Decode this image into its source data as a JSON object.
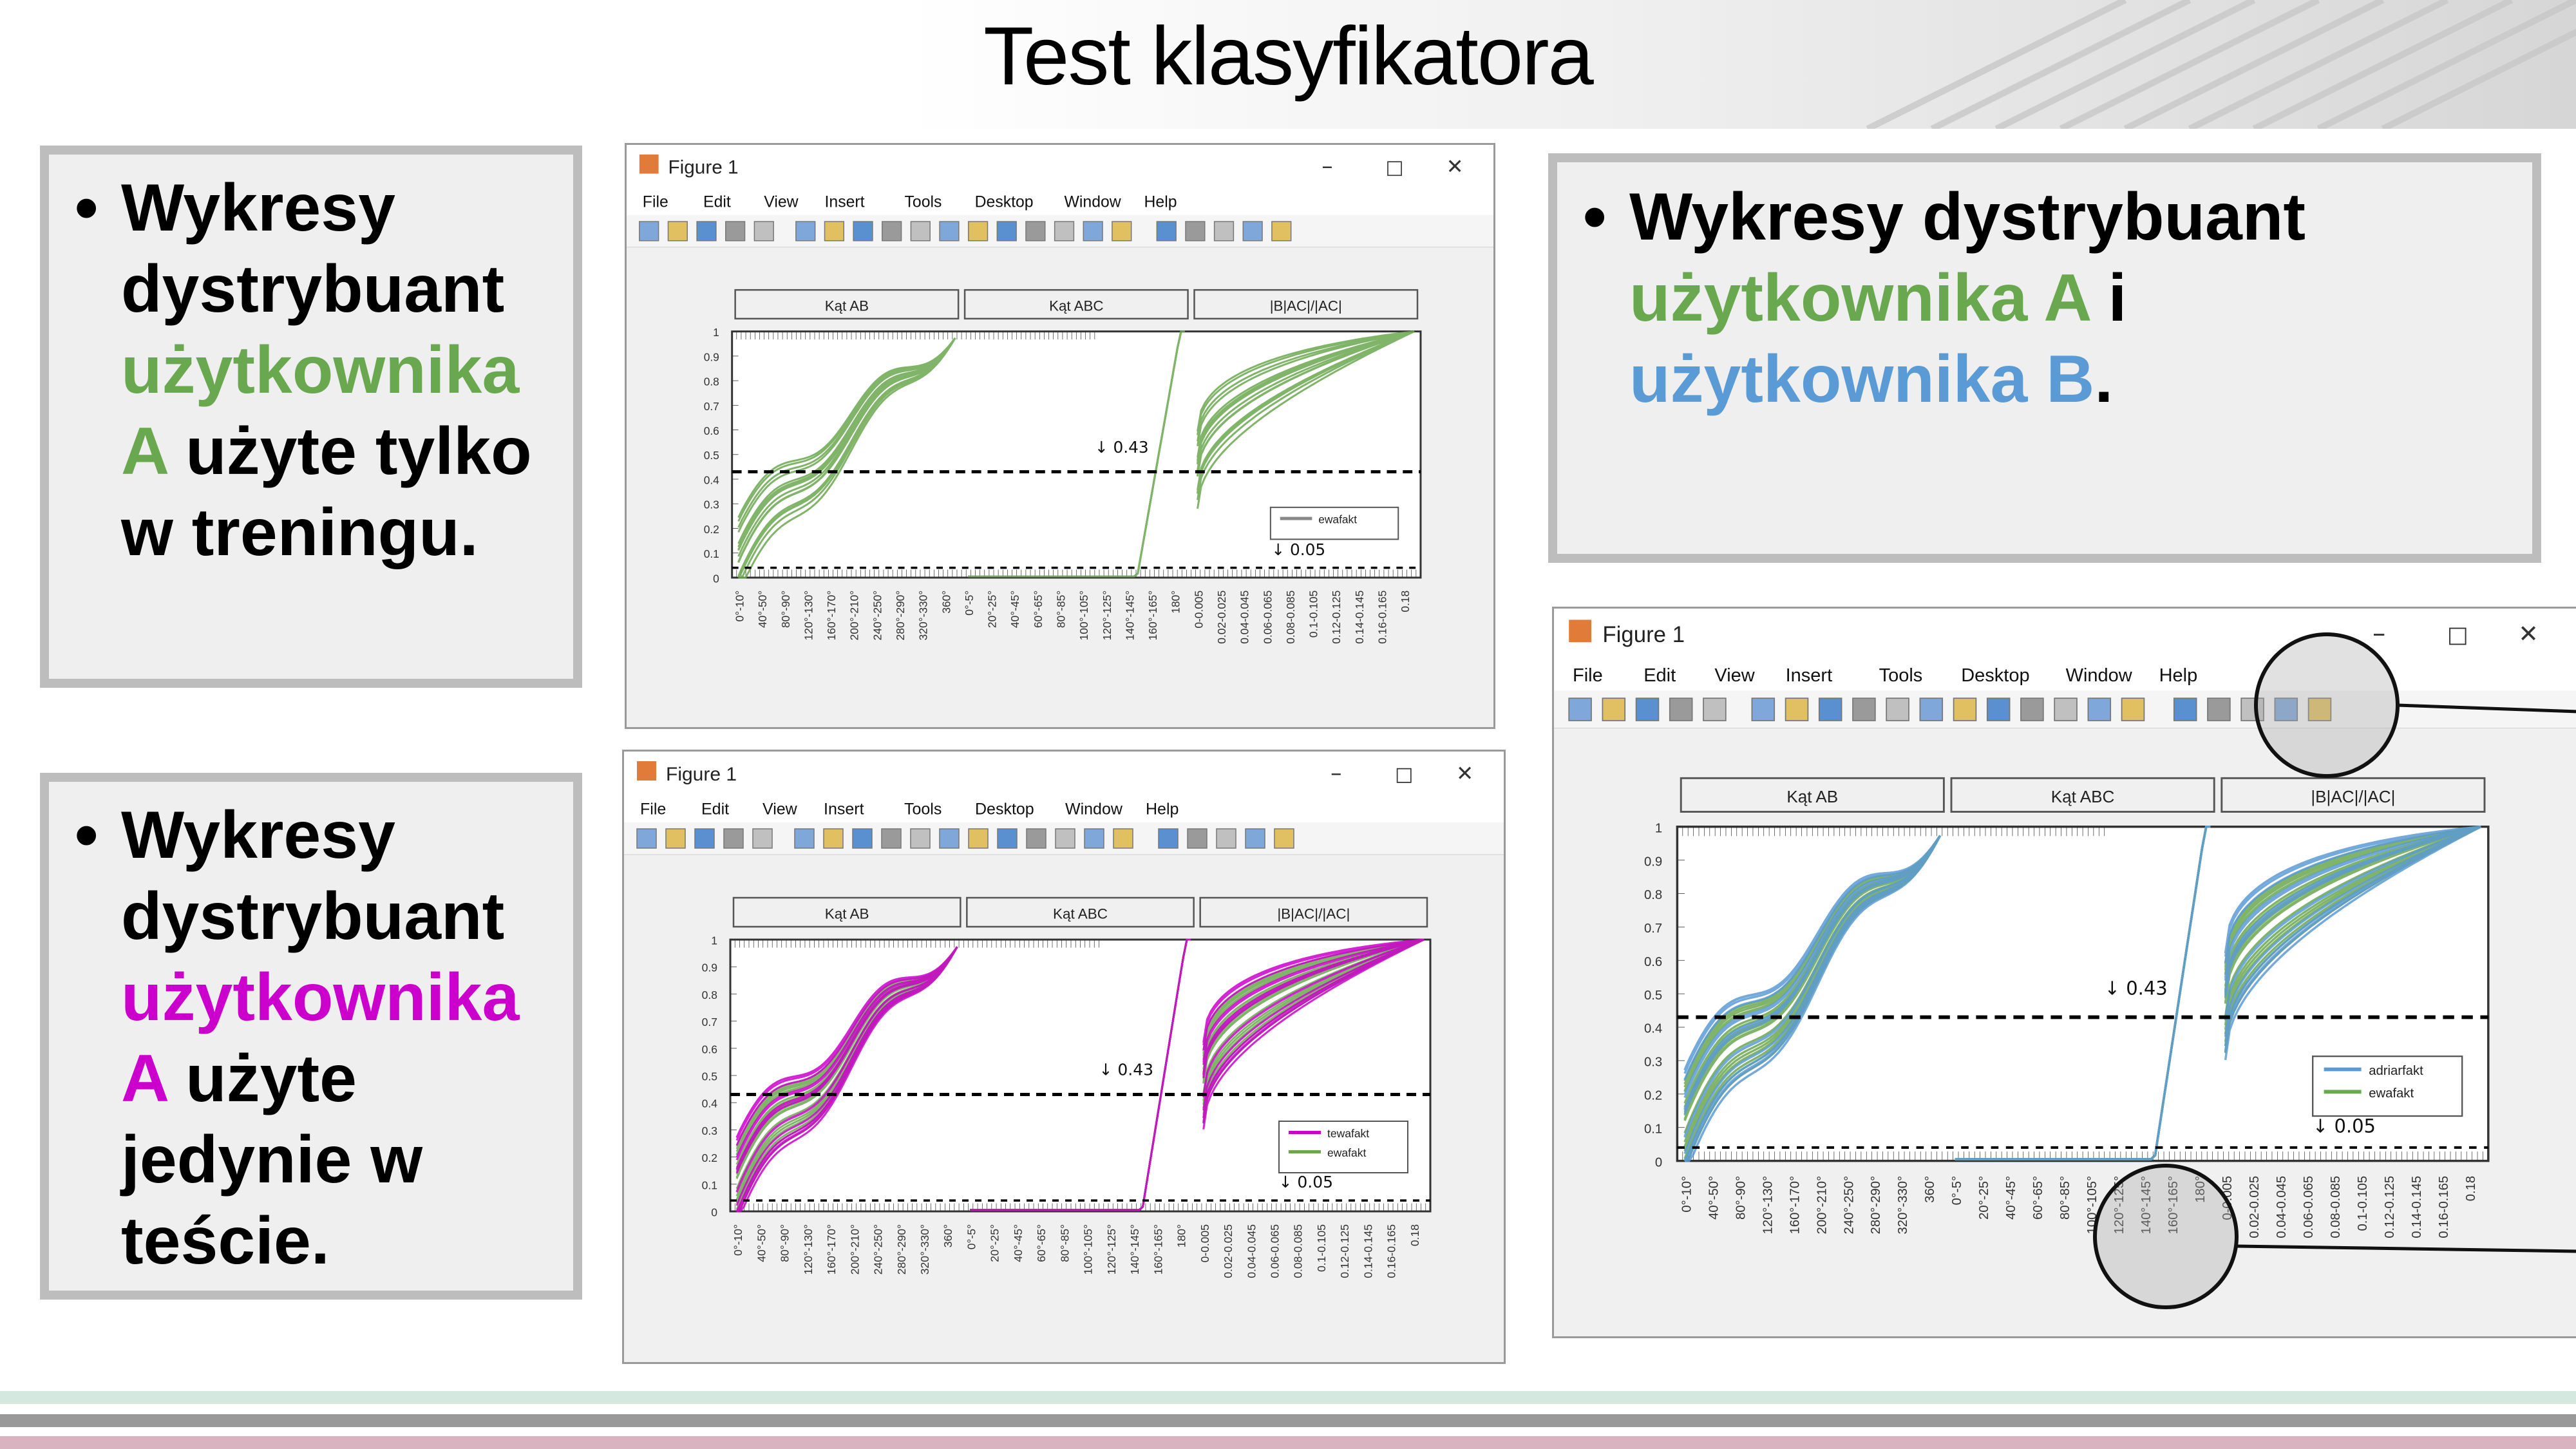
{
  "title": "Test klasyfikatora",
  "boxes": {
    "top_left": {
      "bullet": "•",
      "l1": "Wykresy",
      "l2": "dystrybuant",
      "l3": "użytkownika",
      "l4a": "A",
      "l4b": " użyte tylko",
      "l5": "w treningu."
    },
    "bottom_left": {
      "bullet": "•",
      "l1": "Wykresy",
      "l2": "dystrybuant",
      "l3": "użytkownika",
      "l4a": "A",
      "l4b": " użyte",
      "l5": "jedynie w",
      "l6": "teście."
    },
    "right": {
      "bullet": "•",
      "l1": "Wykresy dystrybuant",
      "l2a": "użytkownika A",
      "l2b": " i",
      "l3a": "użytkownika B",
      "l3b": "."
    }
  },
  "windows": {
    "title": "Figure 1",
    "menu": [
      "File",
      "Edit",
      "View",
      "Insert",
      "Tools",
      "Desktop",
      "Window",
      "Help"
    ],
    "panel_labels": [
      "Kąt AB",
      "Kąt ABC",
      "|B|AC|/|AC|"
    ],
    "y_ticks": [
      "0",
      "0.1",
      "0.2",
      "0.3",
      "0.4",
      "0.5",
      "0.6",
      "0.7",
      "0.8",
      "0.9",
      "1"
    ],
    "annot_top": "↓ 0.43",
    "annot_bottom": "↓ 0.05",
    "x_ticks_panel1": [
      "0°-10°",
      "40°-50°",
      "80°-90°",
      "120°-130°",
      "160°-170°",
      "200°-210°",
      "240°-250°",
      "280°-290°",
      "320°-330°",
      "360°"
    ],
    "x_ticks_panel2": [
      "0°-5°",
      "20°-25°",
      "40°-45°",
      "60°-65°",
      "80°-85°",
      "100°-105°",
      "120°-125°",
      "140°-145°",
      "160°-165°",
      "180°"
    ],
    "x_ticks_panel3": [
      "0-0.005",
      "0.02-0.025",
      "0.04-0.045",
      "0.06-0.065",
      "0.08-0.085",
      "0.1-0.105",
      "0.12-0.125",
      "0.14-0.145",
      "0.16-0.165",
      "0.18"
    ]
  },
  "legends": {
    "fig1": [
      "ewafakt"
    ],
    "fig2": [
      "tewafakt",
      "ewafakt"
    ],
    "fig3": [
      "adriarfakt",
      "ewafakt"
    ]
  },
  "colors": {
    "user_a_train": "#6aa84f",
    "user_a_test": "#cc00cc",
    "user_b": "#5b9bd5",
    "dashed": "#000000"
  }
}
